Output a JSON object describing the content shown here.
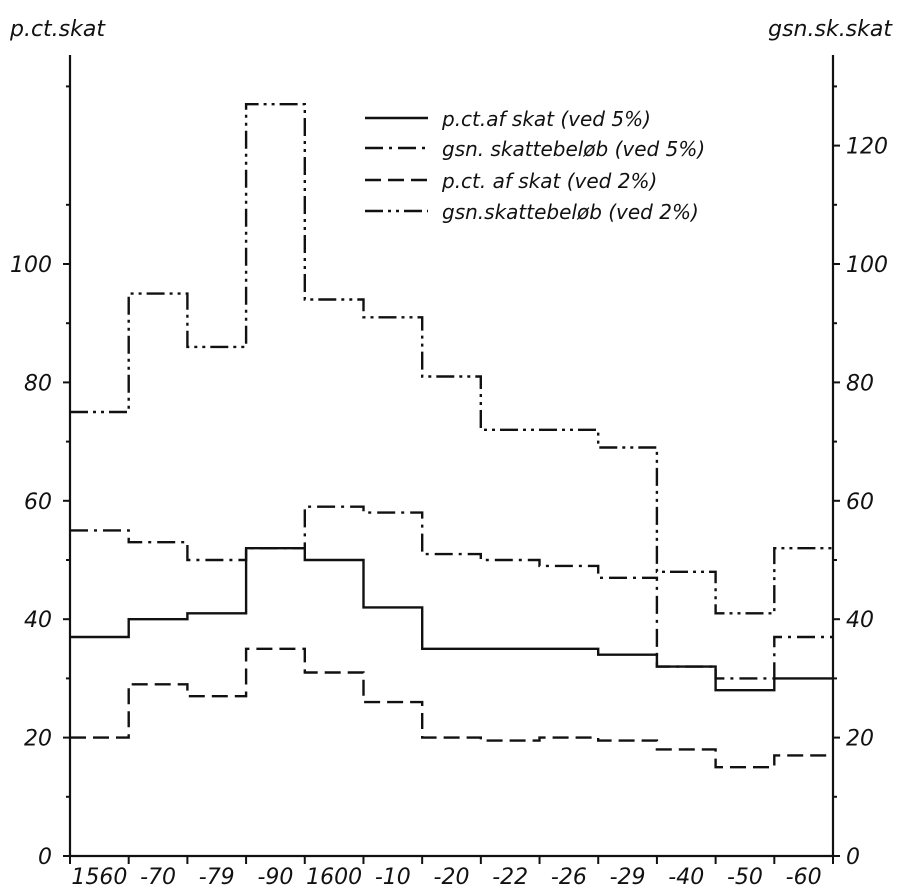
{
  "chart_data": {
    "type": "line",
    "step": true,
    "left_axis_title": "p.ct.skat",
    "right_axis_title": "gsn.sk.skat",
    "x_ticks": [
      "1560",
      "-70",
      "-79",
      "-90",
      "1600",
      "-10",
      "-20",
      "-22",
      "-26",
      "-29",
      "-40",
      "-50",
      "-60"
    ],
    "left_ticks": [
      "0",
      "20",
      "40",
      "60",
      "80",
      "100"
    ],
    "right_ticks": [
      "0",
      "20",
      "40",
      "60",
      "80",
      "100",
      "120"
    ],
    "ylim": [
      0,
      135
    ],
    "legend": {
      "position": "top-right"
    },
    "series": [
      {
        "name": "p.ct.af skat (ved 5%)",
        "axis": "left",
        "dash": "solid",
        "values": [
          37,
          40,
          41,
          52,
          50,
          42,
          35,
          35,
          35,
          34,
          32,
          28,
          30
        ]
      },
      {
        "name": "gsn. skattebeløb (ved 5%)",
        "axis": "right",
        "dash": "dashdot",
        "values": [
          55,
          53,
          50,
          52,
          59,
          58,
          51,
          50,
          49,
          47,
          32,
          30,
          37
        ]
      },
      {
        "name": "p.ct. af skat (ved 2%)",
        "axis": "left",
        "dash": "dashed",
        "values": [
          20,
          29,
          27,
          35,
          31,
          26,
          20,
          19.5,
          20,
          19.5,
          18,
          15,
          17
        ]
      },
      {
        "name": "gsn.skattebeløb (ved 2%)",
        "axis": "right",
        "dash": "dashdotdot",
        "values": [
          75,
          95,
          86,
          127,
          94,
          91,
          81,
          72,
          72,
          69,
          48,
          41,
          52
        ]
      }
    ]
  }
}
